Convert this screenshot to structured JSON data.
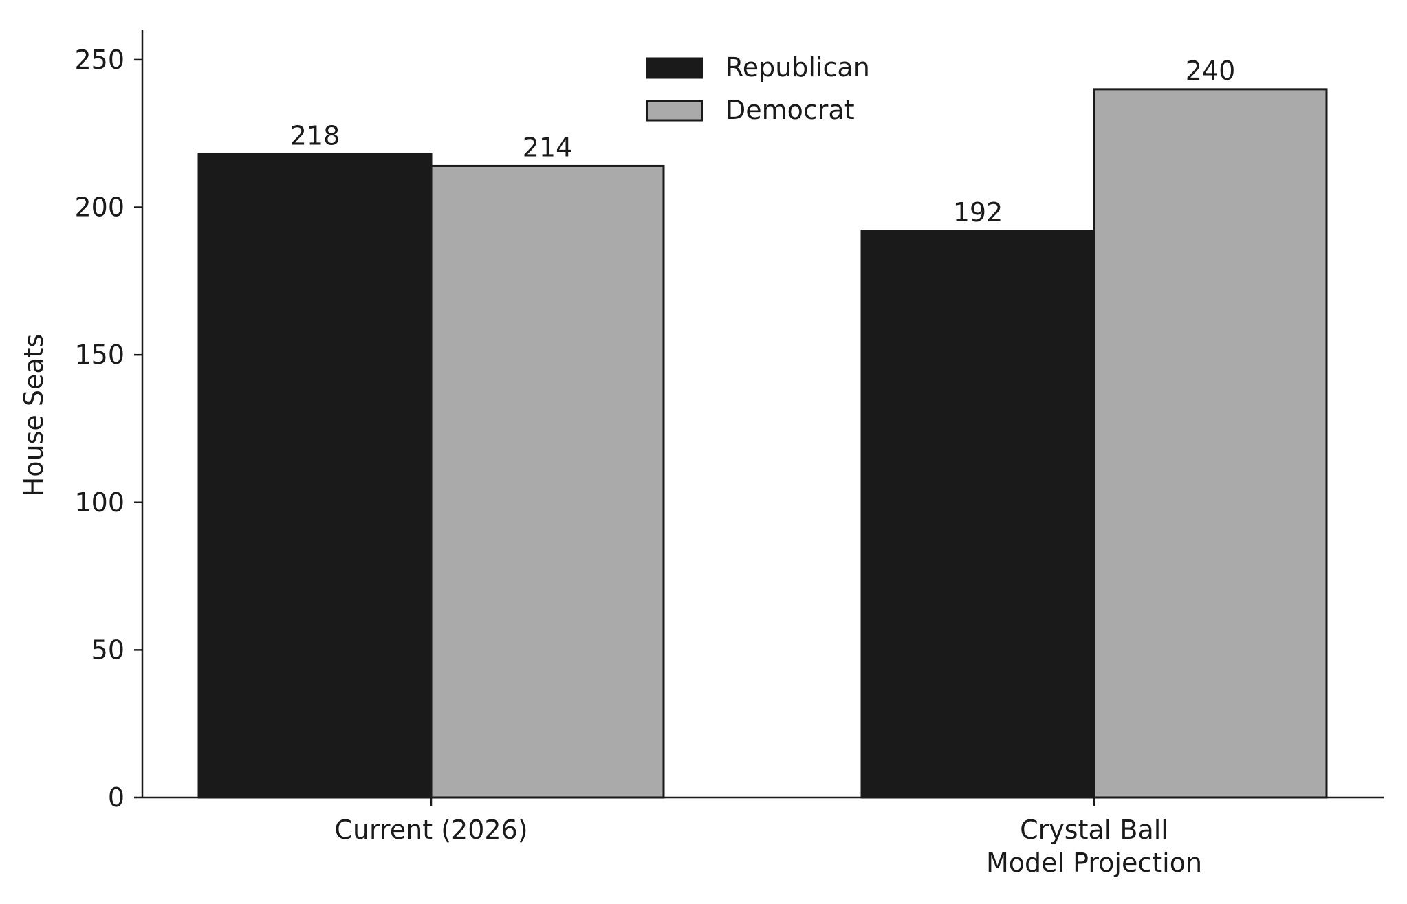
{
  "chart_data": {
    "type": "bar",
    "title": "",
    "xlabel": "",
    "ylabel": "House Seats",
    "categories": [
      [
        "Current (2026)"
      ],
      [
        "Crystal Ball",
        "Model Projection"
      ]
    ],
    "series": [
      {
        "name": "Republican",
        "values": [
          218,
          192
        ],
        "color": "#1a1a1a"
      },
      {
        "name": "Democrat",
        "values": [
          214,
          240
        ],
        "color": "#aaaaaa"
      }
    ],
    "ylim": [
      0,
      260
    ],
    "yticks": [
      0,
      50,
      100,
      150,
      200,
      250
    ],
    "data_labels": true,
    "grid": false,
    "legend_position": "top-center",
    "edge_color": "#1a1a1a"
  }
}
